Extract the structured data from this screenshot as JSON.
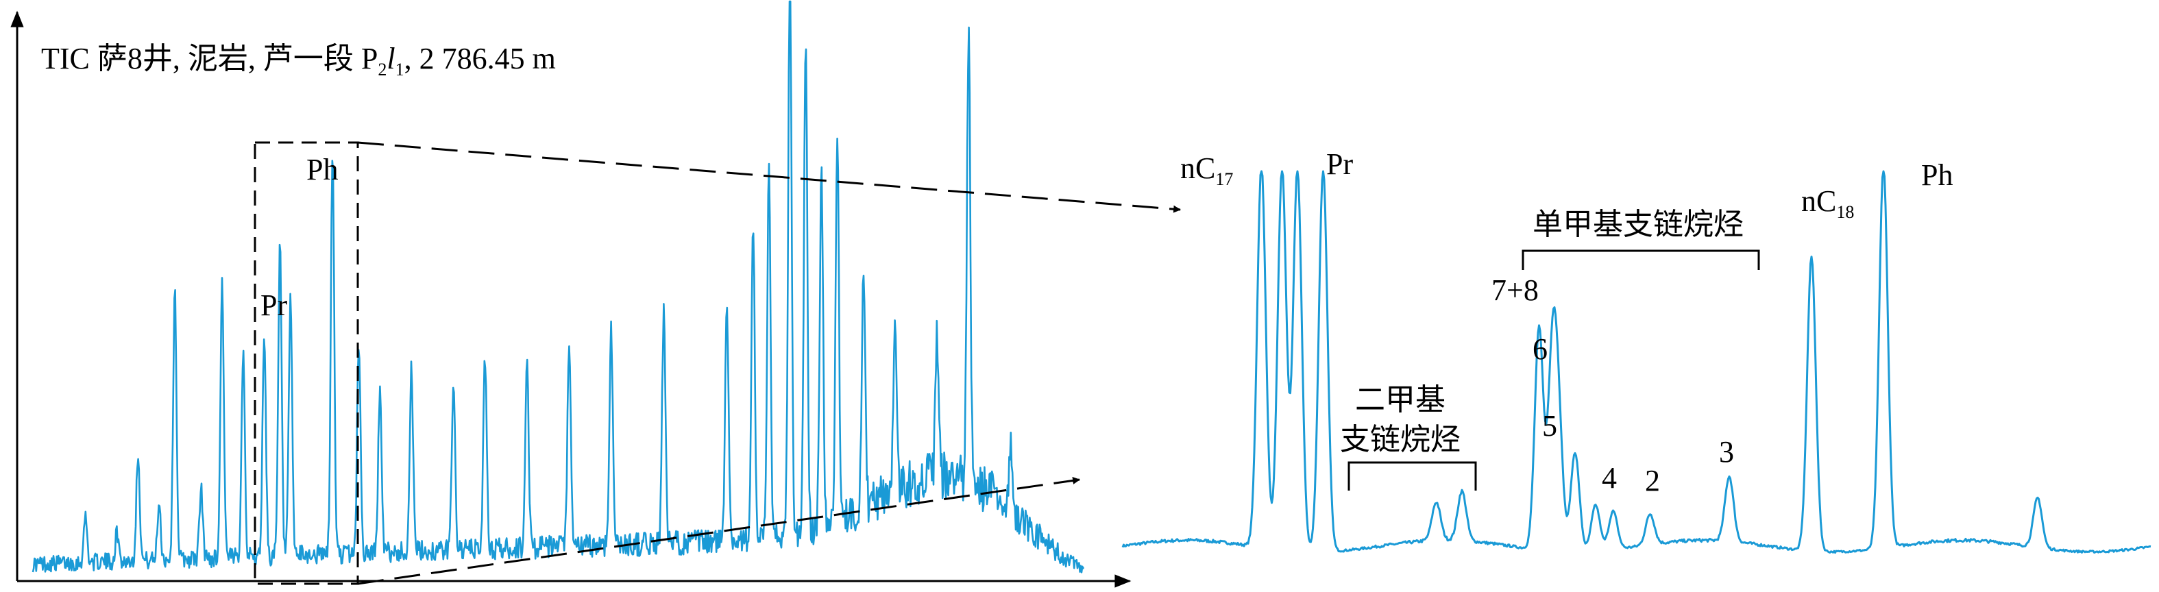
{
  "title": {
    "text": "TIC 萨8井, 泥岩, 芦一段 P",
    "sub1": "2",
    "l": "l",
    "sub2": "1",
    "depth": ", 2 786.45 m"
  },
  "left_peaks": {
    "pr": "Pr",
    "ph": "Ph"
  },
  "right_peaks": {
    "nc17": "nC",
    "nc17_sub": "17",
    "pr": "Pr",
    "nc18": "nC",
    "nc18_sub": "18",
    "ph": "Ph",
    "p78": "7+8",
    "p6": "6",
    "p5": "5",
    "p4": "4",
    "p2": "2",
    "p3": "3"
  },
  "groups": {
    "dimethyl_line1": "二甲基",
    "dimethyl_line2": "支链烷烃",
    "monomethyl": "单甲基支链烷烃"
  },
  "colors": {
    "trace": "#1a9ad6",
    "axis": "#000000"
  },
  "chart_data": [
    {
      "type": "line",
      "title": "TIC 萨8井, 泥岩, 芦一段 P₂l₁, 2 786.45 m",
      "xlabel": "",
      "ylabel": "",
      "grid": false,
      "peaks": [
        {
          "x": 0.05,
          "y": 0.08
        },
        {
          "x": 0.08,
          "y": 0.05
        },
        {
          "x": 0.1,
          "y": 0.19
        },
        {
          "x": 0.12,
          "y": 0.1
        },
        {
          "x": 0.135,
          "y": 0.47
        },
        {
          "x": 0.16,
          "y": 0.12
        },
        {
          "x": 0.18,
          "y": 0.48
        },
        {
          "x": 0.2,
          "y": 0.36
        },
        {
          "x": 0.22,
          "y": 0.39
        },
        {
          "x": 0.235,
          "y": 0.54,
          "label": "Pr"
        },
        {
          "x": 0.245,
          "y": 0.44
        },
        {
          "x": 0.285,
          "y": 0.7,
          "label": "Ph"
        },
        {
          "x": 0.31,
          "y": 0.37
        },
        {
          "x": 0.33,
          "y": 0.28
        },
        {
          "x": 0.36,
          "y": 0.32
        },
        {
          "x": 0.4,
          "y": 0.3
        },
        {
          "x": 0.43,
          "y": 0.33
        },
        {
          "x": 0.47,
          "y": 0.32
        },
        {
          "x": 0.51,
          "y": 0.34
        },
        {
          "x": 0.55,
          "y": 0.38
        },
        {
          "x": 0.6,
          "y": 0.4
        },
        {
          "x": 0.66,
          "y": 0.43
        },
        {
          "x": 0.685,
          "y": 0.54
        },
        {
          "x": 0.7,
          "y": 0.63
        },
        {
          "x": 0.72,
          "y": 1.0
        },
        {
          "x": 0.735,
          "y": 0.86
        },
        {
          "x": 0.75,
          "y": 0.62
        },
        {
          "x": 0.765,
          "y": 0.67
        },
        {
          "x": 0.79,
          "y": 0.42
        },
        {
          "x": 0.82,
          "y": 0.32
        },
        {
          "x": 0.86,
          "y": 0.24
        },
        {
          "x": 0.89,
          "y": 0.78
        },
        {
          "x": 0.93,
          "y": 0.1
        }
      ]
    },
    {
      "type": "line",
      "title": "",
      "xlabel": "",
      "ylabel": "",
      "grid": false,
      "peaks": [
        {
          "x": 0.135,
          "y": 1.0,
          "label": "nC17"
        },
        {
          "x": 0.155,
          "y": 1.0
        },
        {
          "x": 0.17,
          "y": 1.0
        },
        {
          "x": 0.195,
          "y": 1.0,
          "label": "Pr"
        },
        {
          "x": 0.305,
          "y": 0.1
        },
        {
          "x": 0.33,
          "y": 0.13
        },
        {
          "x": 0.405,
          "y": 0.58,
          "label": "7+8"
        },
        {
          "x": 0.418,
          "y": 0.5,
          "label": "6"
        },
        {
          "x": 0.424,
          "y": 0.3
        },
        {
          "x": 0.44,
          "y": 0.26,
          "label": "5"
        },
        {
          "x": 0.46,
          "y": 0.12
        },
        {
          "x": 0.477,
          "y": 0.1,
          "label": "4"
        },
        {
          "x": 0.513,
          "y": 0.08,
          "label": "2"
        },
        {
          "x": 0.59,
          "y": 0.17,
          "label": "3"
        },
        {
          "x": 0.67,
          "y": 0.77,
          "label": "nC18"
        },
        {
          "x": 0.74,
          "y": 1.0,
          "label": "Ph"
        },
        {
          "x": 0.89,
          "y": 0.13
        }
      ]
    }
  ]
}
